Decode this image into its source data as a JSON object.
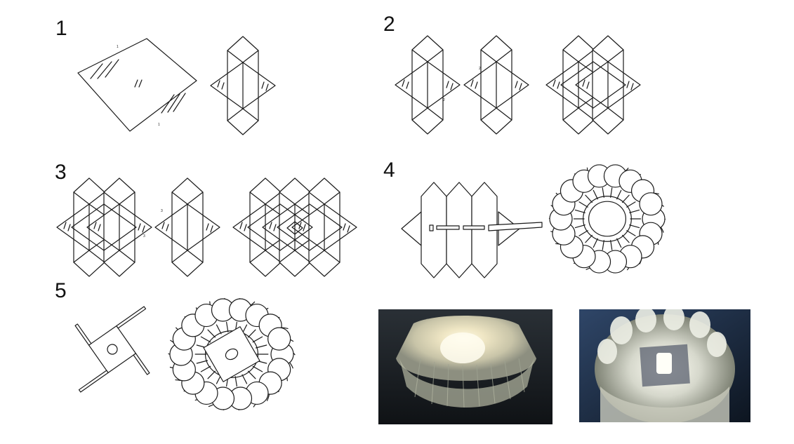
{
  "steps": [
    {
      "number": "1",
      "fold_marks": [
        "1",
        "1"
      ]
    },
    {
      "number": "2",
      "fold_marks": [
        "2",
        "2"
      ]
    },
    {
      "number": "3",
      "fold_marks": [
        "3",
        "3"
      ]
    },
    {
      "number": "4"
    },
    {
      "number": "5"
    }
  ],
  "photos": [
    {
      "name": "lamp-side-view-photo"
    },
    {
      "name": "lamp-underside-view-photo"
    }
  ]
}
